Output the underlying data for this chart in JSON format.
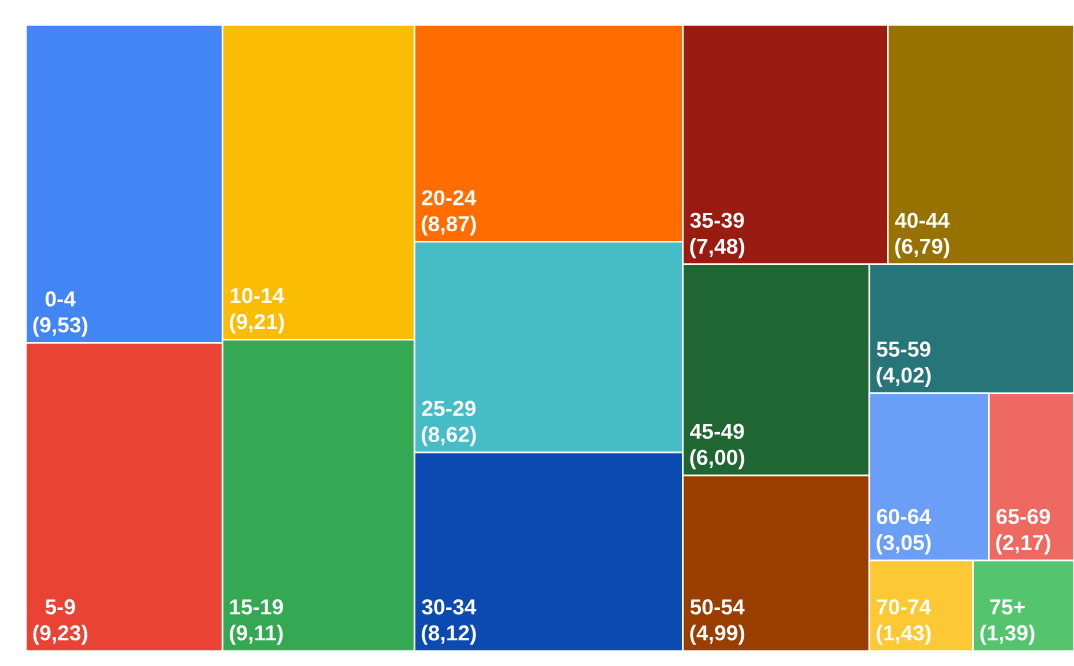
{
  "chart_data": {
    "type": "other",
    "categories": [
      "0-4",
      "5-9",
      "10-14",
      "15-19",
      "20-24",
      "25-29",
      "30-34",
      "35-39",
      "40-44",
      "45-49",
      "50-54",
      "55-59",
      "60-64",
      "65-69",
      "70-74",
      "75+"
    ],
    "values": [
      9.53,
      9.23,
      9.21,
      9.11,
      8.87,
      8.62,
      8.12,
      7.48,
      6.79,
      6.0,
      4.99,
      4.02,
      3.05,
      2.17,
      1.43,
      1.39
    ],
    "value_labels": [
      "(9,53)",
      "(9,23)",
      "(9,21)",
      "(9,11)",
      "(8,87)",
      "(8,62)",
      "(8,12)",
      "(7,48)",
      "(6,79)",
      "(6,00)",
      "(4,99)",
      "(4,02)",
      "(3,05)",
      "(2,17)",
      "(1,43)",
      "(1,39)"
    ],
    "colors": [
      "#4285f4",
      "#ea4335",
      "#fbbc04",
      "#34a853",
      "#ff6d01",
      "#46bdc6",
      "#0b4ab1",
      "#9a1b10",
      "#987200",
      "#1f6632",
      "#9a3e00",
      "#267579",
      "#6a9ef7",
      "#ee6a61",
      "#fcc934",
      "#55c46f"
    ]
  }
}
